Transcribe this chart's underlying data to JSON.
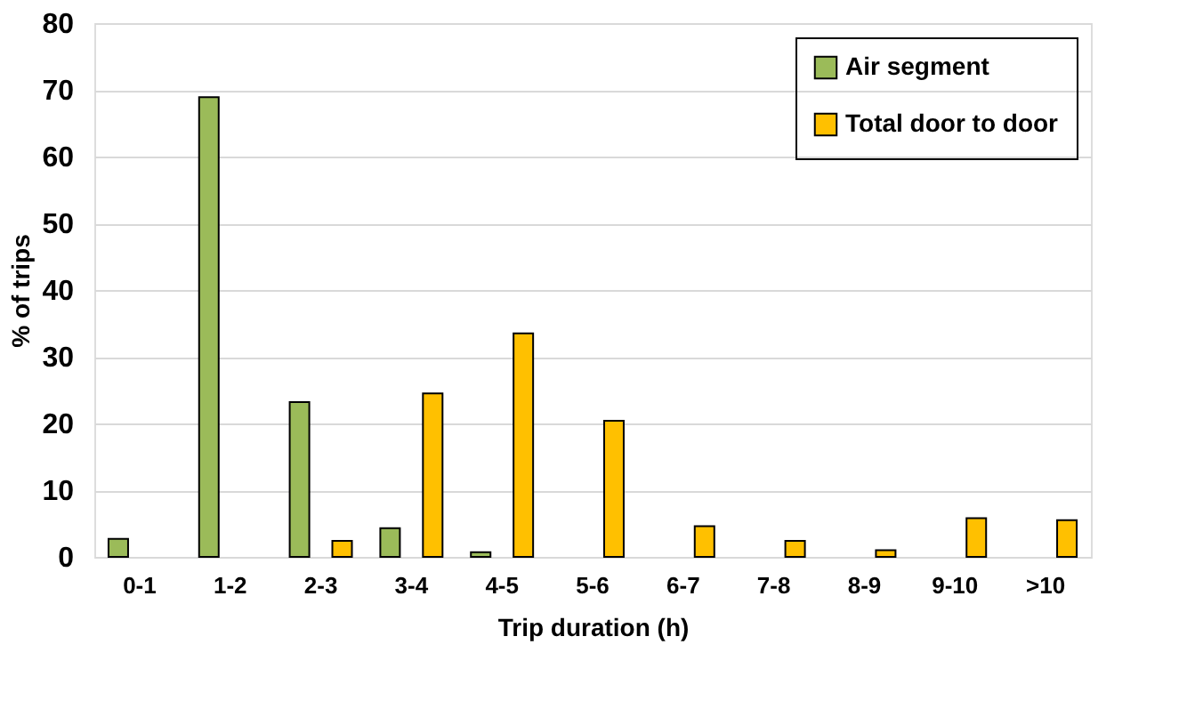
{
  "chart_data": {
    "type": "bar",
    "xlabel": "Trip duration  (h)",
    "ylabel": "% of trips",
    "categories": [
      "0-1",
      "1-2",
      "2-3",
      "3-4",
      "4-5",
      "5-6",
      "6-7",
      "7-8",
      "8-9",
      "9-10",
      ">10"
    ],
    "series": [
      {
        "name": "Air segment",
        "color": "#9bbb59",
        "values": [
          2.7,
          68.9,
          23.2,
          4.3,
          0.7,
          null,
          null,
          null,
          null,
          null,
          null
        ]
      },
      {
        "name": "Total door to door",
        "color": "#ffc000",
        "values": [
          null,
          null,
          2.4,
          24.5,
          33.5,
          20.4,
          4.6,
          2.4,
          1.0,
          5.8,
          5.5
        ]
      }
    ],
    "ylim": [
      0,
      80
    ],
    "yticks": [
      0,
      10,
      20,
      30,
      40,
      50,
      60,
      70,
      80
    ],
    "grid": "y",
    "legend": "top right"
  }
}
